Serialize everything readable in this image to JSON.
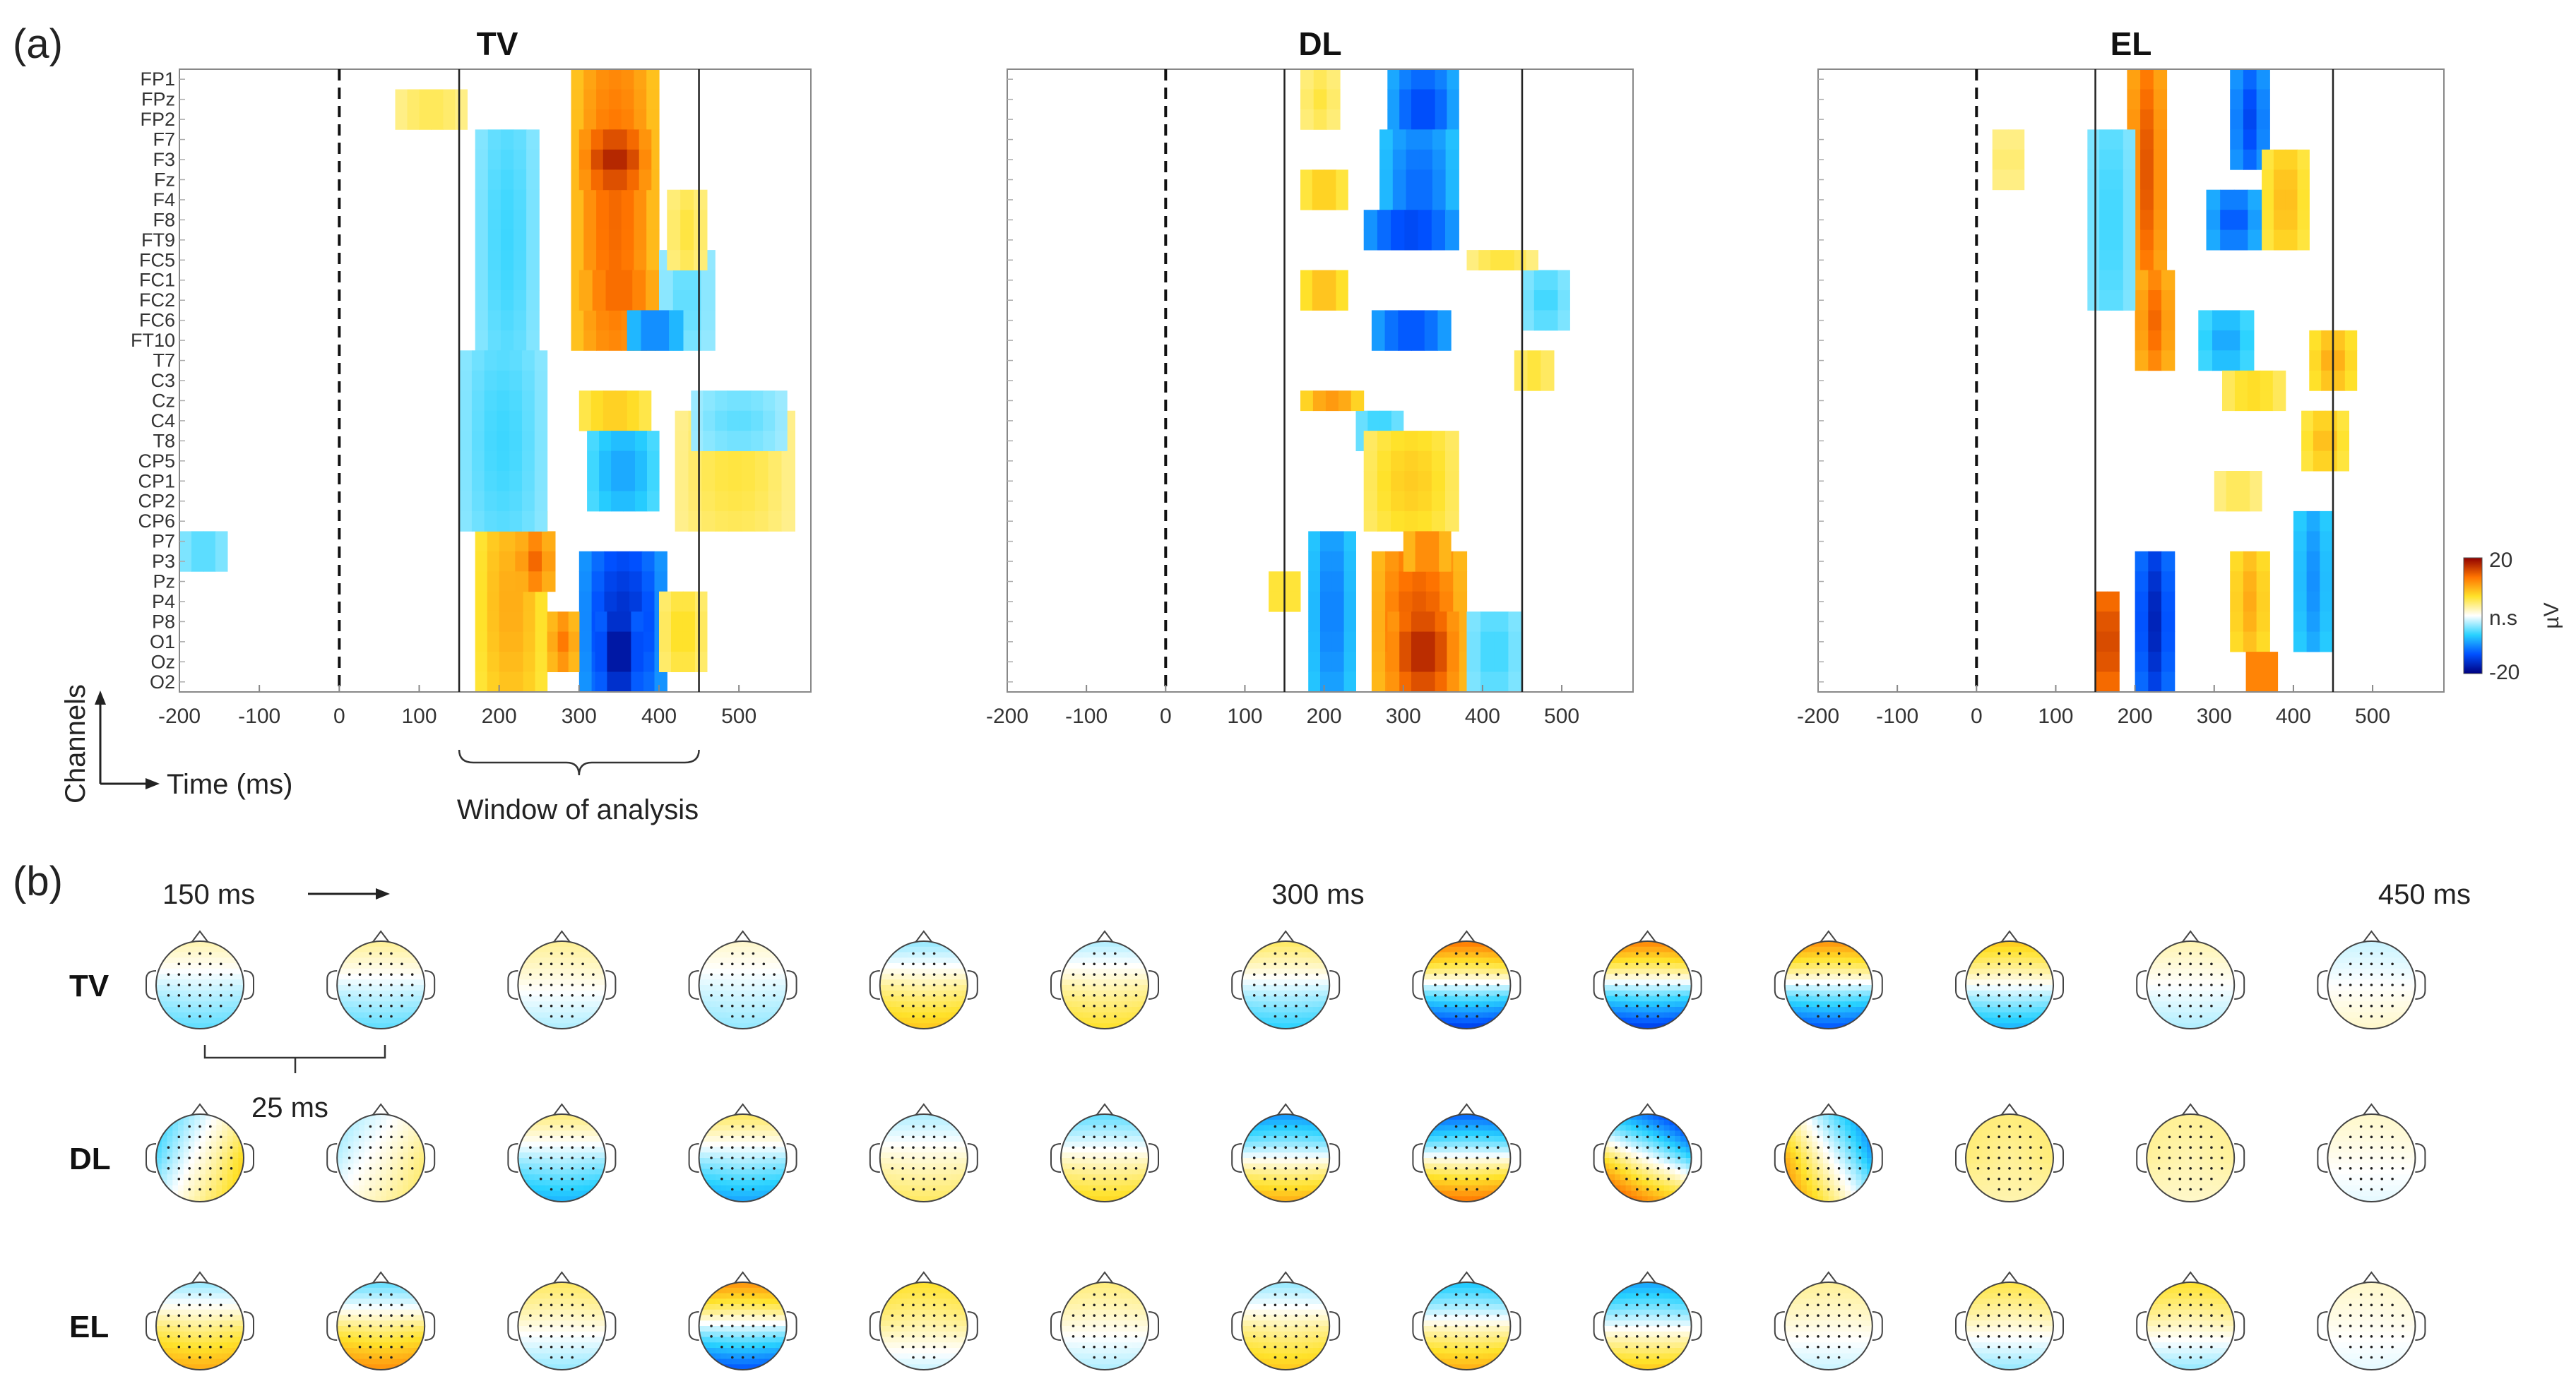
{
  "panel_a_label": "(a)",
  "panel_b_label": "(b)",
  "axis_time_label": "Time (ms)",
  "axis_channel_label": "Channels",
  "window_label": "Window of analysis",
  "colorbar": {
    "max_label": "20",
    "mid_label": "n.s",
    "min_label": "-20",
    "unit": "µV",
    "colors": [
      "#00007f",
      "#0050ff",
      "#28d2ff",
      "#ffffff",
      "#ffe22a",
      "#ff7400",
      "#8f0000"
    ]
  },
  "timeline": {
    "start_label": "150 ms",
    "mid_label": "300 ms",
    "end_label": "450 ms",
    "step_label": "25 ms"
  },
  "chart_data": [
    {
      "type": "heatmap",
      "title": "TV",
      "xlabel": "Time (ms)",
      "ylabel": "Channels",
      "xlim": [
        -200,
        590
      ],
      "xticks": [
        -200,
        -100,
        0,
        100,
        200,
        300,
        400,
        500
      ],
      "stimulus_onset_ms": 0,
      "analysis_window_ms": [
        150,
        450
      ],
      "clim": [
        -20,
        20
      ],
      "channels": [
        "FP1",
        "FPz",
        "FP2",
        "F7",
        "F3",
        "Fz",
        "F4",
        "F8",
        "FT9",
        "FC5",
        "FC1",
        "FC2",
        "FC6",
        "FT10",
        "T7",
        "C3",
        "Cz",
        "C4",
        "T8",
        "CP5",
        "CP1",
        "CP2",
        "CP6",
        "P7",
        "P3",
        "Pz",
        "P4",
        "P8",
        "O1",
        "Oz",
        "O2"
      ],
      "blobs": [
        {
          "ch": [
            0,
            13
          ],
          "t": [
            290,
            400
          ],
          "v": 14
        },
        {
          "ch": [
            3,
            5
          ],
          "t": [
            300,
            390
          ],
          "v": 18
        },
        {
          "ch": [
            10,
            11
          ],
          "t": [
            300,
            400
          ],
          "v": 16
        },
        {
          "ch": [
            16,
            17
          ],
          "t": [
            300,
            390
          ],
          "v": 9
        },
        {
          "ch": [
            24,
            30
          ],
          "t": [
            300,
            410
          ],
          "v": -16
        },
        {
          "ch": [
            27,
            30
          ],
          "t": [
            320,
            380
          ],
          "v": -19
        },
        {
          "ch": [
            22,
            30
          ],
          "t": [
            170,
            260
          ],
          "v": 10
        },
        {
          "ch": [
            23,
            25
          ],
          "t": [
            220,
            270
          ],
          "v": 14
        },
        {
          "ch": [
            27,
            29
          ],
          "t": [
            260,
            300
          ],
          "v": 13
        },
        {
          "ch": [
            3,
            13
          ],
          "t": [
            170,
            250
          ],
          "v": -6
        },
        {
          "ch": [
            14,
            22
          ],
          "t": [
            150,
            260
          ],
          "v": -6
        },
        {
          "ch": [
            9,
            13
          ],
          "t": [
            400,
            470
          ],
          "v": -5
        },
        {
          "ch": [
            17,
            22
          ],
          "t": [
            420,
            570
          ],
          "v": 6
        },
        {
          "ch": [
            12,
            13
          ],
          "t": [
            360,
            430
          ],
          "v": -12
        },
        {
          "ch": [
            18,
            21
          ],
          "t": [
            310,
            400
          ],
          "v": -9
        },
        {
          "ch": [
            1,
            2
          ],
          "t": [
            70,
            160
          ],
          "v": 6
        },
        {
          "ch": [
            23,
            24
          ],
          "t": [
            -200,
            -140
          ],
          "v": -6
        },
        {
          "ch": [
            6,
            9
          ],
          "t": [
            410,
            460
          ],
          "v": 6
        },
        {
          "ch": [
            26,
            29
          ],
          "t": [
            400,
            460
          ],
          "v": 7
        },
        {
          "ch": [
            16,
            18
          ],
          "t": [
            440,
            560
          ],
          "v": -5
        }
      ]
    },
    {
      "type": "heatmap",
      "title": "DL",
      "xlabel": "Time (ms)",
      "ylabel": "Channels",
      "xlim": [
        -200,
        590
      ],
      "xticks": [
        -200,
        -100,
        0,
        100,
        200,
        300,
        400,
        500
      ],
      "stimulus_onset_ms": 0,
      "analysis_window_ms": [
        150,
        450
      ],
      "clim": [
        -20,
        20
      ],
      "blobs": [
        {
          "ch": [
            0,
            3
          ],
          "t": [
            280,
            370
          ],
          "v": -14
        },
        {
          "ch": [
            3,
            8
          ],
          "t": [
            270,
            370
          ],
          "v": -12
        },
        {
          "ch": [
            7,
            8
          ],
          "t": [
            250,
            370
          ],
          "v": -16
        },
        {
          "ch": [
            12,
            13
          ],
          "t": [
            260,
            360
          ],
          "v": -15
        },
        {
          "ch": [
            17,
            18
          ],
          "t": [
            240,
            300
          ],
          "v": -7
        },
        {
          "ch": [
            18,
            22
          ],
          "t": [
            250,
            370
          ],
          "v": 8
        },
        {
          "ch": [
            23,
            30
          ],
          "t": [
            180,
            240
          ],
          "v": -11
        },
        {
          "ch": [
            24,
            30
          ],
          "t": [
            260,
            380
          ],
          "v": 15
        },
        {
          "ch": [
            27,
            30
          ],
          "t": [
            280,
            370
          ],
          "v": 18
        },
        {
          "ch": [
            0,
            2
          ],
          "t": [
            170,
            220
          ],
          "v": 6
        },
        {
          "ch": [
            5,
            6
          ],
          "t": [
            170,
            230
          ],
          "v": 9
        },
        {
          "ch": [
            10,
            11
          ],
          "t": [
            170,
            230
          ],
          "v": 10
        },
        {
          "ch": [
            16,
            16
          ],
          "t": [
            170,
            250
          ],
          "v": 11
        },
        {
          "ch": [
            10,
            12
          ],
          "t": [
            450,
            510
          ],
          "v": -6
        },
        {
          "ch": [
            14,
            15
          ],
          "t": [
            440,
            490
          ],
          "v": 7
        },
        {
          "ch": [
            23,
            24
          ],
          "t": [
            300,
            360
          ],
          "v": 14
        },
        {
          "ch": [
            25,
            26
          ],
          "t": [
            130,
            170
          ],
          "v": 8
        },
        {
          "ch": [
            27,
            30
          ],
          "t": [
            380,
            450
          ],
          "v": -6
        },
        {
          "ch": [
            9,
            9
          ],
          "t": [
            380,
            470
          ],
          "v": 6
        }
      ]
    },
    {
      "type": "heatmap",
      "title": "EL",
      "xlabel": "Time (ms)",
      "ylabel": "Channels",
      "xlim": [
        -200,
        590
      ],
      "xticks": [
        -200,
        -100,
        0,
        100,
        200,
        300,
        400,
        500
      ],
      "stimulus_onset_ms": 0,
      "analysis_window_ms": [
        150,
        450
      ],
      "clim": [
        -20,
        20
      ],
      "blobs": [
        {
          "ch": [
            0,
            9
          ],
          "t": [
            190,
            240
          ],
          "v": 15
        },
        {
          "ch": [
            10,
            14
          ],
          "t": [
            200,
            250
          ],
          "v": 14
        },
        {
          "ch": [
            0,
            4
          ],
          "t": [
            320,
            370
          ],
          "v": -14
        },
        {
          "ch": [
            6,
            8
          ],
          "t": [
            290,
            360
          ],
          "v": -13
        },
        {
          "ch": [
            24,
            30
          ],
          "t": [
            200,
            250
          ],
          "v": -17
        },
        {
          "ch": [
            26,
            30
          ],
          "t": [
            150,
            180
          ],
          "v": 18
        },
        {
          "ch": [
            24,
            28
          ],
          "t": [
            320,
            370
          ],
          "v": 10
        },
        {
          "ch": [
            22,
            28
          ],
          "t": [
            400,
            450
          ],
          "v": -10
        },
        {
          "ch": [
            12,
            14
          ],
          "t": [
            280,
            350
          ],
          "v": -9
        },
        {
          "ch": [
            15,
            16
          ],
          "t": [
            310,
            390
          ],
          "v": 8
        },
        {
          "ch": [
            20,
            21
          ],
          "t": [
            300,
            360
          ],
          "v": 6
        },
        {
          "ch": [
            4,
            8
          ],
          "t": [
            360,
            420
          ],
          "v": 9
        },
        {
          "ch": [
            13,
            15
          ],
          "t": [
            420,
            480
          ],
          "v": 10
        },
        {
          "ch": [
            17,
            19
          ],
          "t": [
            410,
            470
          ],
          "v": 9
        },
        {
          "ch": [
            3,
            5
          ],
          "t": [
            20,
            60
          ],
          "v": 5
        },
        {
          "ch": [
            29,
            30
          ],
          "t": [
            340,
            380
          ],
          "v": 16
        },
        {
          "ch": [
            3,
            11
          ],
          "t": [
            140,
            200
          ],
          "v": -6
        }
      ]
    }
  ],
  "topomaps": {
    "rows": [
      {
        "label": "TV",
        "maps": [
          {
            "f": 3,
            "o": -6,
            "ap": 0,
            "lr": 0
          },
          {
            "f": 4,
            "o": -6,
            "ap": 0,
            "lr": 0
          },
          {
            "f": 4,
            "o": -3,
            "ap": 0,
            "lr": 0
          },
          {
            "f": 2,
            "o": -4,
            "ap": 0,
            "lr": 0
          },
          {
            "f": -4,
            "o": 10,
            "ap": 0,
            "lr": 0
          },
          {
            "f": -3,
            "o": 8,
            "ap": 0,
            "lr": 0
          },
          {
            "f": 6,
            "o": -8,
            "ap": 0,
            "lr": 0
          },
          {
            "f": 16,
            "o": -18,
            "ap": 0,
            "lr": 0
          },
          {
            "f": 15,
            "o": -18,
            "ap": 0,
            "lr": 0
          },
          {
            "f": 14,
            "o": -16,
            "ap": 0,
            "lr": 0
          },
          {
            "f": 10,
            "o": -10,
            "ap": 0,
            "lr": 0
          },
          {
            "f": 3,
            "o": -3,
            "ap": 0,
            "lr": 0
          },
          {
            "f": -2,
            "o": 2,
            "ap": 0,
            "lr": 0
          }
        ]
      },
      {
        "label": "DL",
        "maps": [
          {
            "f": -2,
            "o": 4,
            "ap": 0,
            "lr": 2
          },
          {
            "f": -1,
            "o": 3,
            "ap": 0,
            "lr": 1
          },
          {
            "f": 5,
            "o": -10,
            "ap": 0,
            "lr": 0
          },
          {
            "f": 6,
            "o": -11,
            "ap": 0,
            "lr": 0
          },
          {
            "f": -3,
            "o": 6,
            "ap": 0,
            "lr": 0
          },
          {
            "f": -6,
            "o": 9,
            "ap": 0,
            "lr": 0
          },
          {
            "f": -12,
            "o": 12,
            "ap": 0,
            "lr": 0
          },
          {
            "f": -15,
            "o": 16,
            "ap": 0,
            "lr": 0
          },
          {
            "f": -14,
            "o": 14,
            "ap": 0,
            "lr": -2
          },
          {
            "f": -5,
            "o": 6,
            "ap": 0,
            "lr": -3
          },
          {
            "f": 5,
            "o": 3,
            "ap": 0,
            "lr": 0
          },
          {
            "f": 4,
            "o": 2,
            "ap": 0,
            "lr": 0
          },
          {
            "f": 2,
            "o": -1,
            "ap": 0,
            "lr": 0
          }
        ]
      },
      {
        "label": "EL",
        "maps": [
          {
            "f": -4,
            "o": 12,
            "ap": 0,
            "lr": 0
          },
          {
            "f": -6,
            "o": 14,
            "ap": 0,
            "lr": 0
          },
          {
            "f": 6,
            "o": -4,
            "ap": 0,
            "lr": 0
          },
          {
            "f": 14,
            "o": -16,
            "ap": 0,
            "lr": 0
          },
          {
            "f": 8,
            "o": -2,
            "ap": 0,
            "lr": 0
          },
          {
            "f": 5,
            "o": -3,
            "ap": 0,
            "lr": 0
          },
          {
            "f": -4,
            "o": 10,
            "ap": 0,
            "lr": 0
          },
          {
            "f": -9,
            "o": 12,
            "ap": 0,
            "lr": 0
          },
          {
            "f": -11,
            "o": 10,
            "ap": 0,
            "lr": 0
          },
          {
            "f": 4,
            "o": -2,
            "ap": 0,
            "lr": 0
          },
          {
            "f": 7,
            "o": -4,
            "ap": 0,
            "lr": 0
          },
          {
            "f": 8,
            "o": -4,
            "ap": 0,
            "lr": 0
          },
          {
            "f": 2,
            "o": -1,
            "ap": 0,
            "lr": 0
          }
        ]
      }
    ]
  }
}
